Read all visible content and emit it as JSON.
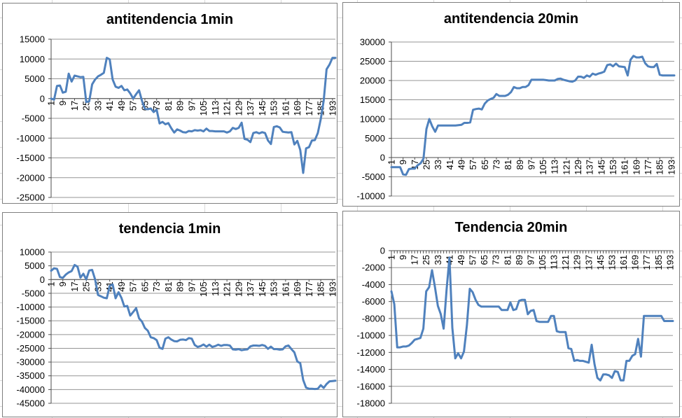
{
  "sheet": {
    "app": "spreadsheet",
    "cell_grid_color": "#d9d9d9",
    "chart_border_color": "#7f7f7f",
    "gridline_color": "#959595",
    "axis_color": "#4d4d4d",
    "text_color": "#000000"
  },
  "chart_data": [
    {
      "type": "line",
      "title": "antitendencia 1min",
      "legend": null,
      "grid": "horizontal",
      "line_color": "#4F81BD",
      "ylim": [
        -25000,
        15000
      ],
      "y_tick_step": 5000,
      "x_tick_labels": [
        "1",
        "9",
        "17",
        "25",
        "33",
        "41",
        "49",
        "57",
        "65",
        "73",
        "81",
        "89",
        "97",
        "105",
        "113",
        "121",
        "129",
        "137",
        "145",
        "153",
        "161",
        "169",
        "177",
        "185",
        "193"
      ],
      "x_label_rotation": -90,
      "x_start": 1,
      "x_step": 2,
      "values": [
        0,
        -300,
        3200,
        3300,
        1500,
        1700,
        6300,
        4300,
        5800,
        5600,
        5400,
        5500,
        -900,
        -700,
        3600,
        4800,
        5600,
        6000,
        6500,
        10300,
        9900,
        4800,
        3000,
        2700,
        3200,
        2100,
        2300,
        1300,
        0,
        1100,
        2100,
        -600,
        -2600,
        -2700,
        -2500,
        -3400,
        -2800,
        -6300,
        -5900,
        -6500,
        -6200,
        -7500,
        -8600,
        -7800,
        -8100,
        -8500,
        -8600,
        -8200,
        -8300,
        -8000,
        -8100,
        -8000,
        -8300,
        -7600,
        -8200,
        -8200,
        -8300,
        -8300,
        -8300,
        -8300,
        -8600,
        -8300,
        -7400,
        -7700,
        -7400,
        -6100,
        -10200,
        -10400,
        -11000,
        -8700,
        -8500,
        -8800,
        -8500,
        -8700,
        -10600,
        -11500,
        -7200,
        -7000,
        -7300,
        -8400,
        -8500,
        -8600,
        -8500,
        -11600,
        -10700,
        -13000,
        -18800,
        -12600,
        -12300,
        -10600,
        -10500,
        -8700,
        -5200,
        -500,
        7400,
        8600,
        10300,
        10300
      ]
    },
    {
      "type": "line",
      "title": "antitendencia 20min",
      "legend": null,
      "grid": "horizontal",
      "line_color": "#4F81BD",
      "ylim": [
        -10000,
        30000
      ],
      "y_tick_step": 5000,
      "x_tick_labels": [
        "1",
        "9",
        "17",
        "25",
        "33",
        "41",
        "49",
        "57",
        "65",
        "73",
        "81",
        "89",
        "97",
        "105",
        "113",
        "121",
        "129",
        "137",
        "145",
        "153",
        "161",
        "169",
        "177",
        "185",
        "193"
      ],
      "x_label_rotation": -90,
      "x_start": 1,
      "x_step": 2,
      "values": [
        -2500,
        -2500,
        -2500,
        -2500,
        -4400,
        -4500,
        -3000,
        -2900,
        -2900,
        -2000,
        -1500,
        -300,
        7400,
        10000,
        8100,
        6700,
        8300,
        8300,
        8300,
        8300,
        8300,
        8300,
        8300,
        8400,
        8500,
        9000,
        9000,
        9100,
        12400,
        12600,
        12700,
        12500,
        14000,
        14800,
        15200,
        15500,
        16500,
        16000,
        16000,
        16000,
        16300,
        17000,
        18300,
        18000,
        18000,
        18300,
        18300,
        18800,
        20200,
        20200,
        20200,
        20200,
        20200,
        20100,
        20000,
        20000,
        20000,
        20400,
        20500,
        20200,
        20000,
        19800,
        19700,
        20000,
        21000,
        21000,
        20700,
        21300,
        21000,
        21800,
        21500,
        21800,
        22000,
        22300,
        24000,
        24200,
        23700,
        24400,
        23700,
        23600,
        23500,
        21300,
        25400,
        26400,
        26000,
        26000,
        26200,
        24500,
        23700,
        23500,
        23500,
        24300,
        21500,
        21300,
        21300,
        21300,
        21300,
        21300
      ]
    },
    {
      "type": "line",
      "title": "tendencia 1min",
      "legend": null,
      "grid": "horizontal",
      "line_color": "#4F81BD",
      "ylim": [
        -45000,
        10000
      ],
      "y_tick_step": 5000,
      "x_tick_labels": [
        "1",
        "9",
        "17",
        "25",
        "33",
        "41",
        "49",
        "57",
        "65",
        "73",
        "81",
        "89",
        "97",
        "105",
        "113",
        "121",
        "129",
        "137",
        "145",
        "153",
        "161",
        "169",
        "177",
        "185",
        "193"
      ],
      "x_label_rotation": -90,
      "x_start": 1,
      "x_step": 2,
      "values": [
        3200,
        4100,
        3900,
        900,
        600,
        1800,
        2600,
        3100,
        5300,
        4700,
        700,
        2100,
        100,
        3300,
        3500,
        100,
        -5600,
        -6100,
        -6600,
        -6800,
        -2300,
        -1800,
        -6800,
        -4600,
        -6700,
        -9800,
        -9600,
        -13100,
        -11800,
        -10400,
        -14100,
        -15300,
        -17600,
        -18600,
        -21000,
        -21300,
        -22000,
        -24800,
        -25200,
        -21500,
        -21000,
        -21800,
        -22400,
        -22500,
        -21900,
        -21800,
        -22000,
        -21300,
        -21500,
        -23800,
        -24500,
        -24200,
        -23600,
        -24400,
        -23700,
        -24500,
        -24200,
        -23700,
        -24100,
        -23800,
        -23800,
        -24000,
        -25400,
        -25500,
        -25300,
        -25700,
        -25500,
        -25400,
        -24300,
        -24000,
        -24000,
        -24100,
        -23800,
        -24100,
        -25200,
        -24400,
        -25300,
        -25300,
        -25500,
        -25400,
        -24300,
        -24000,
        -25300,
        -26500,
        -29800,
        -30400,
        -36500,
        -39300,
        -39700,
        -39700,
        -39800,
        -39700,
        -38400,
        -39400,
        -38000,
        -37000,
        -36900,
        -36800
      ]
    },
    {
      "type": "line",
      "title": "Tendencia 20min",
      "legend": null,
      "grid": "horizontal",
      "line_color": "#4F81BD",
      "ylim": [
        -18000,
        0
      ],
      "y_tick_step": 2000,
      "x_tick_labels": [
        "1",
        "9",
        "17",
        "25",
        "33",
        "41",
        "49",
        "57",
        "65",
        "73",
        "81",
        "89",
        "97",
        "105",
        "113",
        "121",
        "129",
        "137",
        "145",
        "153",
        "161",
        "169",
        "177",
        "185",
        "193"
      ],
      "x_label_rotation": -90,
      "x_start": 1,
      "x_step": 2,
      "values": [
        -4800,
        -6300,
        -11400,
        -11400,
        -11300,
        -11300,
        -11200,
        -10900,
        -10500,
        -10400,
        -10300,
        -9200,
        -4800,
        -4300,
        -2300,
        -4300,
        -6500,
        -7500,
        -9200,
        -4700,
        -800,
        -9100,
        -12700,
        -12100,
        -12700,
        -11900,
        -8800,
        -4500,
        -4900,
        -5800,
        -6400,
        -6600,
        -6600,
        -6600,
        -6600,
        -6600,
        -6600,
        -6600,
        -7000,
        -7000,
        -7000,
        -6100,
        -7000,
        -6900,
        -5900,
        -5800,
        -5800,
        -7500,
        -7100,
        -7000,
        -8300,
        -8400,
        -8400,
        -8400,
        -8400,
        -7700,
        -7700,
        -9500,
        -9600,
        -9600,
        -9600,
        -11500,
        -11600,
        -13000,
        -12900,
        -13000,
        -13000,
        -13100,
        -13200,
        -11100,
        -13400,
        -15000,
        -15300,
        -14600,
        -14600,
        -14700,
        -15000,
        -14200,
        -14300,
        -15300,
        -15300,
        -13000,
        -13000,
        -12400,
        -12200,
        -10400,
        -12500,
        -7700,
        -7700,
        -7700,
        -7700,
        -7700,
        -7700,
        -7700,
        -8300,
        -8300,
        -8300,
        -8300
      ]
    }
  ]
}
